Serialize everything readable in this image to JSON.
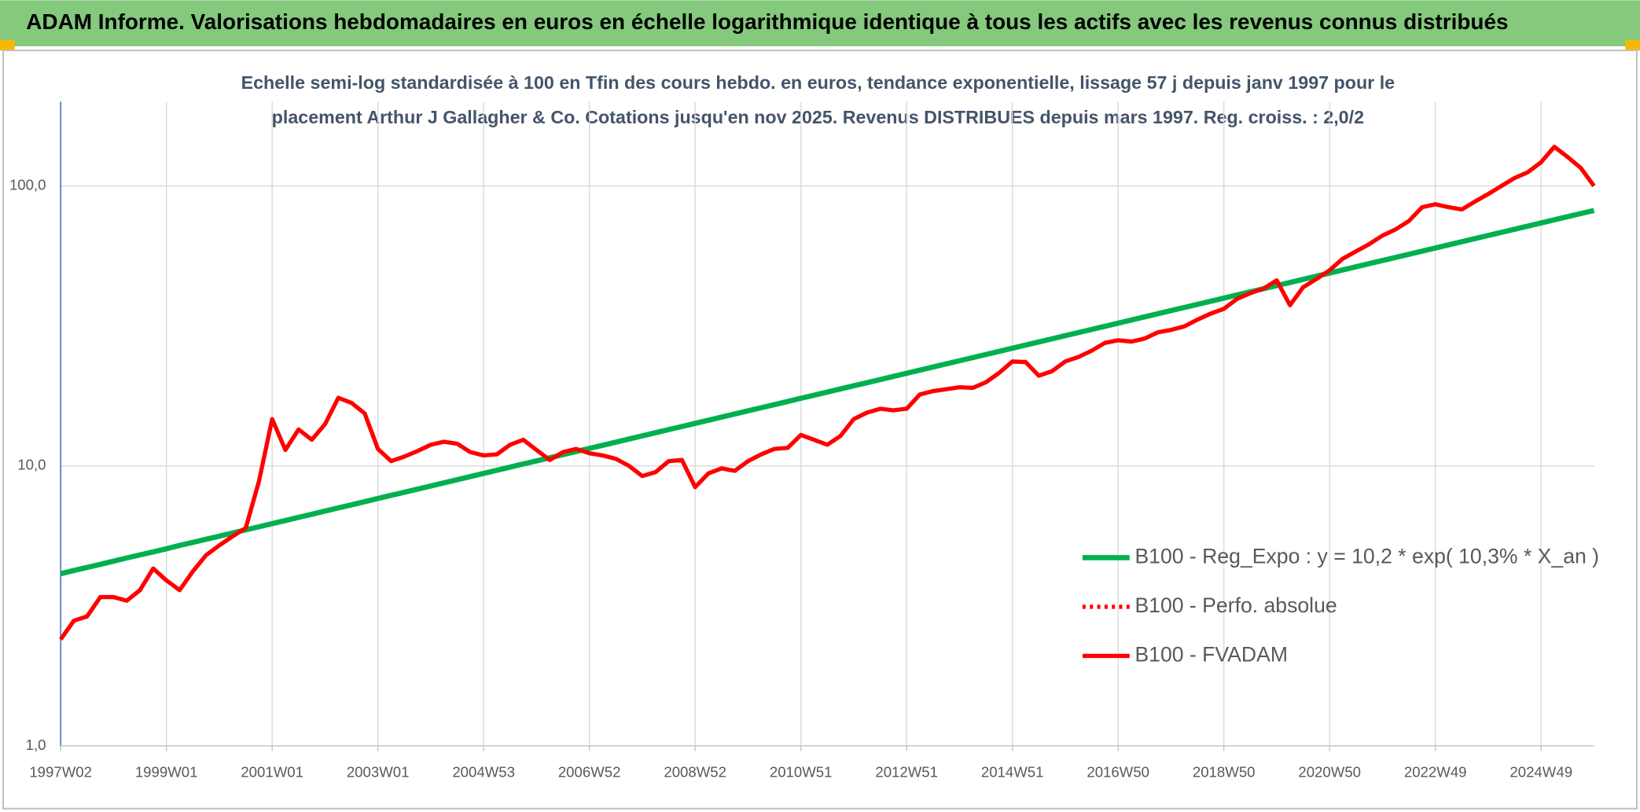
{
  "chart_data": {
    "type": "line",
    "title": "ADAM Informe. Valorisations hebdomadaires en euros en échelle logarithmique identique à tous les actifs avec les revenus connus distribués",
    "subtitle": [
      "Echelle semi-log standardisée à 100 en Tfin des cours hebdo. en euros, tendance exponentielle, lissage 57 j depuis janv 1997 pour le",
      "placement Arthur J Gallagher & Co. Cotations jusqu'en nov 2025. Revenus DISTRIBUES depuis mars 1997. Reg. croiss. : 2,0/2"
    ],
    "log_scale": true,
    "grid": true,
    "legend": "right",
    "ylim": [
      1,
      200
    ],
    "yticks": [
      {
        "value": 1,
        "label": "1,0"
      },
      {
        "value": 10,
        "label": "10,0"
      },
      {
        "value": 100,
        "label": "100,0"
      }
    ],
    "categories": [
      "1997W02",
      null,
      null,
      null,
      null,
      null,
      null,
      null,
      "1999W01",
      null,
      null,
      null,
      null,
      null,
      null,
      null,
      "2001W01",
      null,
      null,
      null,
      null,
      null,
      null,
      null,
      "2003W01",
      null,
      null,
      null,
      null,
      null,
      null,
      null,
      "2004W53",
      null,
      null,
      null,
      null,
      null,
      null,
      null,
      "2006W52",
      null,
      null,
      null,
      null,
      null,
      null,
      null,
      "2008W52",
      null,
      null,
      null,
      null,
      null,
      null,
      null,
      "2010W51",
      null,
      null,
      null,
      null,
      null,
      null,
      null,
      "2012W51",
      null,
      null,
      null,
      null,
      null,
      null,
      null,
      "2014W51",
      null,
      null,
      null,
      null,
      null,
      null,
      null,
      "2016W50",
      null,
      null,
      null,
      null,
      null,
      null,
      null,
      "2018W50",
      null,
      null,
      null,
      null,
      null,
      null,
      null,
      "2020W50",
      null,
      null,
      null,
      null,
      null,
      null,
      null,
      "2022W49",
      null,
      null,
      null,
      null,
      null,
      null,
      null,
      "2024W49",
      null,
      null,
      null,
      null
    ],
    "series": [
      {
        "name": "B100 - Reg_Expo : y = 10,2 * exp( 10,3% *  X_an )",
        "color": "#00b050",
        "style": "solid",
        "values": [
          4.12,
          4.23,
          4.34,
          4.45,
          4.57,
          4.69,
          4.81,
          4.93,
          5.06,
          5.2,
          5.33,
          5.47,
          5.61,
          5.76,
          5.91,
          6.06,
          6.22,
          6.38,
          6.55,
          6.72,
          6.9,
          7.08,
          7.26,
          7.45,
          7.65,
          7.85,
          8.05,
          8.26,
          8.48,
          8.7,
          8.93,
          9.16,
          9.4,
          9.65,
          9.9,
          10.16,
          10.42,
          10.69,
          10.97,
          11.26,
          11.55,
          11.85,
          12.16,
          12.48,
          12.8,
          13.14,
          13.48,
          13.83,
          14.19,
          14.56,
          14.94,
          15.33,
          15.73,
          16.14,
          16.56,
          16.99,
          17.44,
          17.89,
          18.36,
          18.84,
          19.33,
          19.83,
          20.35,
          20.88,
          21.43,
          21.99,
          22.56,
          23.15,
          23.75,
          24.37,
          25.01,
          25.66,
          26.33,
          27.02,
          27.72,
          28.44,
          29.19,
          29.95,
          30.73,
          31.53,
          32.36,
          33.2,
          34.07,
          34.96,
          35.87,
          36.8,
          37.76,
          38.75,
          39.76,
          40.8,
          41.86,
          42.95,
          44.07,
          45.22,
          46.4,
          47.61,
          48.86,
          50.13,
          51.44,
          52.78,
          54.16,
          55.57,
          57.02,
          58.51,
          60.04,
          61.6,
          63.21,
          64.86,
          66.55,
          68.29,
          70.07,
          71.89,
          73.77,
          75.69,
          77.67,
          79.69,
          81.77
        ]
      },
      {
        "name": "B100 - Perfo. absolue",
        "color": "#ff0000",
        "style": "dotted"
      },
      {
        "name": "B100 - FVADAM",
        "color": "#ff0000",
        "style": "solid",
        "values": [
          2.4,
          2.8,
          2.9,
          3.4,
          3.4,
          3.3,
          3.6,
          4.3,
          3.9,
          3.6,
          4.2,
          4.8,
          5.2,
          5.6,
          6.0,
          8.8,
          14.7,
          11.4,
          13.5,
          12.4,
          14.1,
          17.5,
          16.8,
          15.4,
          11.5,
          10.4,
          10.8,
          11.3,
          11.9,
          12.2,
          12.0,
          11.2,
          10.9,
          11.0,
          11.9,
          12.4,
          11.4,
          10.5,
          11.2,
          11.5,
          11.1,
          10.9,
          10.6,
          10.0,
          9.2,
          9.5,
          10.4,
          10.5,
          8.4,
          9.4,
          9.8,
          9.6,
          10.4,
          11.0,
          11.5,
          11.6,
          12.9,
          12.4,
          11.9,
          12.8,
          14.7,
          15.5,
          16.0,
          15.8,
          16.0,
          18.0,
          18.5,
          18.8,
          19.1,
          19.0,
          19.9,
          21.5,
          23.6,
          23.5,
          21.0,
          21.8,
          23.6,
          24.5,
          25.8,
          27.5,
          28.1,
          27.8,
          28.5,
          30.0,
          30.6,
          31.5,
          33.3,
          35.0,
          36.4,
          39.5,
          41.4,
          43.0,
          46.0,
          37.5,
          43.5,
          46.5,
          50.0,
          55.0,
          58.4,
          62.0,
          66.5,
          70.0,
          75.0,
          84.0,
          86.0,
          84.0,
          82.4,
          88.0,
          93.6,
          100.0,
          106.8,
          112.0,
          121.6,
          138.0,
          127.0,
          116.0,
          100.0
        ]
      }
    ]
  }
}
